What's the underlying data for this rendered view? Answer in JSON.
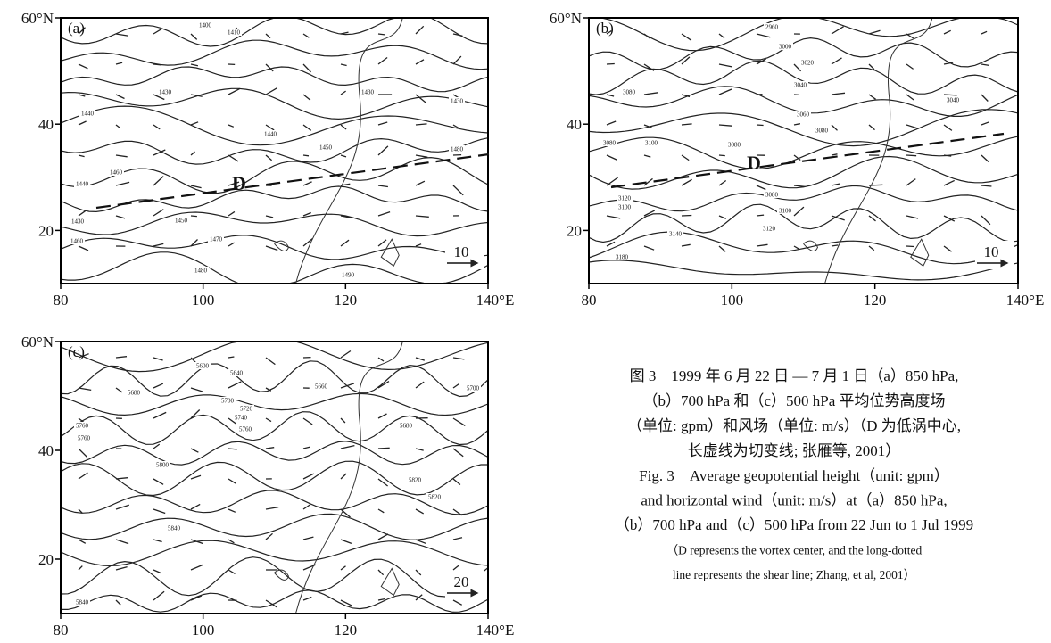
{
  "panels": [
    {
      "label": "(a)",
      "y_axis": [
        "60°N",
        "40",
        "20"
      ],
      "x_axis": [
        "80",
        "100",
        "120",
        "140°E"
      ],
      "vortex": "D",
      "scale": "10",
      "contour_labels": [
        "1400",
        "1410",
        "1430",
        "1430",
        "1440",
        "1450",
        "1430",
        "1440",
        "1460",
        "1440",
        "1450",
        "1430",
        "1460",
        "1470",
        "1480",
        "1490",
        "1480"
      ]
    },
    {
      "label": "(b)",
      "y_axis": [
        "60°N",
        "40",
        "20"
      ],
      "x_axis": [
        "80",
        "100",
        "120",
        "140°E"
      ],
      "vortex": "D",
      "scale": "10",
      "contour_labels": [
        "2960",
        "3000",
        "3020",
        "3040",
        "3080",
        "3060",
        "3080",
        "3040",
        "3080",
        "3100",
        "3080",
        "3120",
        "3100",
        "3080",
        "3100",
        "3120",
        "3140",
        "3180"
      ]
    },
    {
      "label": "(c)",
      "y_axis": [
        "60°N",
        "40",
        "20"
      ],
      "x_axis": [
        "80",
        "100",
        "120",
        "140°E"
      ],
      "scale": "20",
      "contour_labels": [
        "5600",
        "5640",
        "5660",
        "5680",
        "5700",
        "5720",
        "5740",
        "5760",
        "5760",
        "5760",
        "5800",
        "5820",
        "5820",
        "5840",
        "5840",
        "5700",
        "5680"
      ]
    }
  ],
  "caption": {
    "zh": [
      "图 3　1999 年 6 月 22 日 — 7 月 1 日（a）850 hPa,",
      "（b）700 hPa 和（c）500 hPa 平均位势高度场",
      "（单位: gpm）和风场（单位: m/s）（D 为低涡中心,",
      "长虚线为切变线; 张雁等, 2001）"
    ],
    "en": [
      "Fig. 3　Average geopotential height（unit: gpm）",
      "and horizontal wind（unit: m/s）at（a）850 hPa,",
      "（b）700 hPa and（c）500 hPa from 22 Jun to 1 Jul 1999",
      "（D represents the vortex center, and the long-dotted",
      "line represents the shear line; Zhang, et al, 2001）"
    ]
  }
}
